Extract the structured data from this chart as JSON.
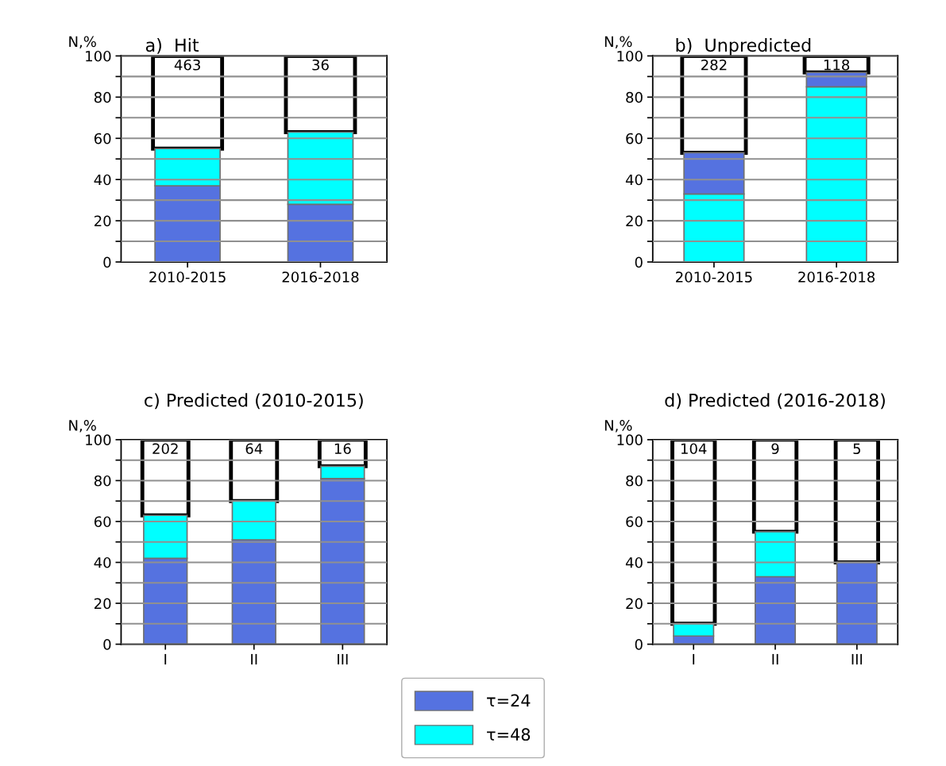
{
  "chart_data": [
    {
      "type": "bar",
      "title": "a)  Hit",
      "ylabel": "N,%",
      "categories": [
        "2010-2015",
        "2016-2018"
      ],
      "stacked": true,
      "ylim": [
        0,
        100
      ],
      "yticks": [
        0,
        {
          "value": 10,
          "label": null
        },
        20,
        {
          "value": 30,
          "label": null
        },
        40,
        {
          "value": 50,
          "label": null
        },
        60,
        {
          "value": 70,
          "label": null
        },
        80,
        {
          "value": 90,
          "label": null
        },
        100
      ],
      "grid": "y",
      "annotations": [
        {
          "text": "463",
          "x": "2010-2015",
          "y": 100
        },
        {
          "text": "36",
          "x": "2016-2018",
          "y": 100
        }
      ],
      "series": [
        {
          "color": "#5572e0",
          "values": [
            37,
            28
          ]
        },
        {
          "color": "#00ffff",
          "values": [
            18,
            35
          ]
        },
        {
          "color": "#ffffff",
          "values": [
            45,
            37
          ]
        }
      ]
    },
    {
      "type": "bar",
      "title": "b)  Unpredicted",
      "ylabel": "N,%",
      "categories": [
        "2010-2015",
        "2016-2018"
      ],
      "stacked": true,
      "ylim": [
        0,
        100
      ],
      "yticks": [
        0,
        {
          "value": 10,
          "label": null
        },
        20,
        {
          "value": 30,
          "label": null
        },
        40,
        {
          "value": 50,
          "label": null
        },
        60,
        {
          "value": 70,
          "label": null
        },
        80,
        {
          "value": 90,
          "label": null
        },
        100
      ],
      "grid": "y",
      "annotations": [
        {
          "text": "282",
          "x": "2010-2015",
          "y": 100
        },
        {
          "text": "118",
          "x": "2016-2018",
          "y": 100
        }
      ],
      "series": [
        {
          "color": "#00ffff",
          "values": [
            33,
            85
          ]
        },
        {
          "color": "#5572e0",
          "values": [
            20,
            7
          ]
        },
        {
          "color": "#ffffff",
          "values": [
            47,
            8
          ]
        }
      ]
    },
    {
      "type": "bar",
      "title": "c) Predicted (2010-2015)",
      "ylabel": "N,%",
      "categories": [
        "I",
        "II",
        "III"
      ],
      "stacked": true,
      "ylim": [
        0,
        100
      ],
      "yticks": [
        0,
        {
          "value": 10,
          "label": null
        },
        20,
        {
          "value": 30,
          "label": null
        },
        40,
        {
          "value": 50,
          "label": null
        },
        60,
        {
          "value": 70,
          "label": null
        },
        80,
        {
          "value": 90,
          "label": null
        },
        100
      ],
      "grid": "y",
      "annotations": [
        {
          "text": "202",
          "x": "I",
          "y": 100
        },
        {
          "text": "64",
          "x": "II",
          "y": 100
        },
        {
          "text": "16",
          "x": "III",
          "y": 100
        }
      ],
      "series": [
        {
          "color": "#5572e0",
          "values": [
            42,
            51,
            81
          ]
        },
        {
          "color": "#00ffff",
          "values": [
            21,
            19,
            6
          ]
        },
        {
          "color": "#ffffff",
          "values": [
            37,
            30,
            13
          ]
        }
      ]
    },
    {
      "type": "bar",
      "title": "d) Predicted (2016-2018)",
      "ylabel": "N,%",
      "categories": [
        "I",
        "II",
        "III"
      ],
      "stacked": true,
      "ylim": [
        0,
        100
      ],
      "yticks": [
        0,
        {
          "value": 10,
          "label": null
        },
        20,
        {
          "value": 30,
          "label": null
        },
        40,
        {
          "value": 50,
          "label": null
        },
        60,
        {
          "value": 70,
          "label": null
        },
        80,
        {
          "value": 90,
          "label": null
        },
        100
      ],
      "grid": "y",
      "legend": "bottom",
      "annotations": [
        {
          "text": "104",
          "x": "I",
          "y": 100
        },
        {
          "text": "9",
          "x": "II",
          "y": 100
        },
        {
          "text": "5",
          "x": "III",
          "y": 100
        }
      ],
      "series": [
        {
          "name": "τ=24",
          "color": "#5572e0",
          "values": [
            4,
            33,
            40
          ]
        },
        {
          "name": "τ=48",
          "color": "#00ffff",
          "values": [
            6,
            22,
            0
          ]
        },
        {
          "color": "#ffffff",
          "values": [
            90,
            45,
            60
          ]
        }
      ]
    }
  ]
}
